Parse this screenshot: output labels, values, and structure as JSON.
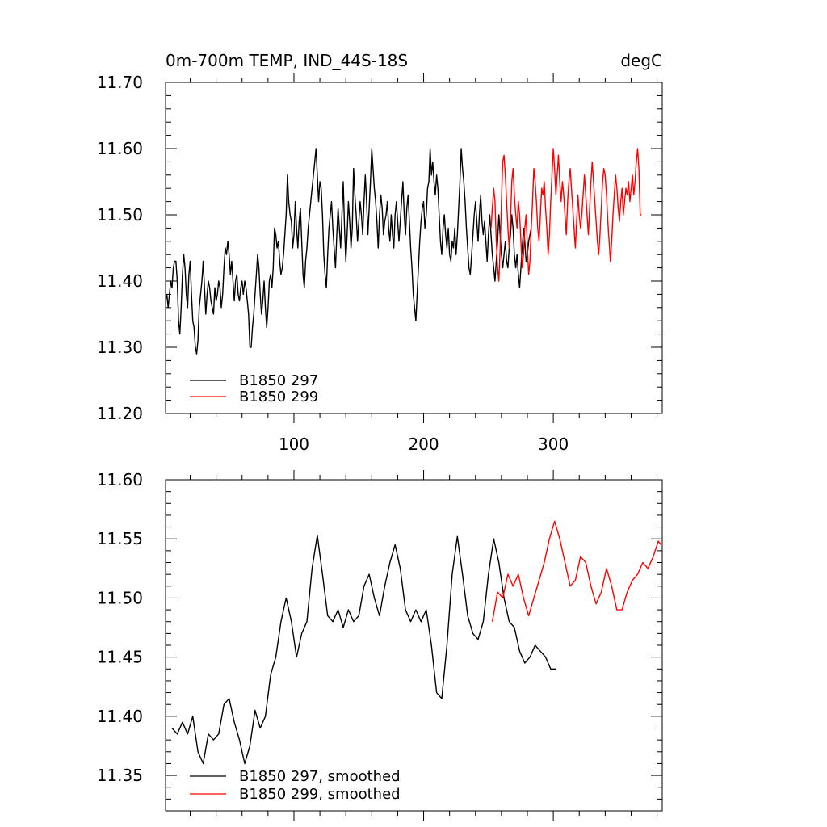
{
  "chart_data": [
    {
      "type": "line",
      "title": "0m-700m TEMP, IND_44S-18S",
      "units": "degC",
      "xlim": [
        1,
        384
      ],
      "ylim": [
        11.2,
        11.7
      ],
      "xticks": [
        100,
        200,
        300
      ],
      "xtick_labels": [
        "100",
        "200",
        "300"
      ],
      "yticks": [
        11.2,
        11.3,
        11.4,
        11.5,
        11.6,
        11.7
      ],
      "ytick_labels": [
        "11.20",
        "11.30",
        "11.40",
        "11.50",
        "11.60",
        "11.70"
      ],
      "legend": {
        "position": "bottom-left",
        "entries": [
          "B1850 297",
          "B1850 299"
        ]
      },
      "series": [
        {
          "name": "B1850 297",
          "color": "#000000",
          "x_start": 1,
          "values": [
            11.37,
            11.38,
            11.36,
            11.38,
            11.4,
            11.39,
            11.42,
            11.43,
            11.43,
            11.4,
            11.34,
            11.32,
            11.36,
            11.41,
            11.44,
            11.42,
            11.38,
            11.36,
            11.41,
            11.43,
            11.38,
            11.34,
            11.33,
            11.3,
            11.29,
            11.31,
            11.36,
            11.38,
            11.4,
            11.43,
            11.39,
            11.35,
            11.38,
            11.4,
            11.39,
            11.37,
            11.36,
            11.35,
            11.39,
            11.37,
            11.38,
            11.4,
            11.39,
            11.36,
            11.38,
            11.42,
            11.45,
            11.44,
            11.46,
            11.44,
            11.41,
            11.43,
            11.4,
            11.37,
            11.4,
            11.41,
            11.38,
            11.37,
            11.39,
            11.4,
            11.38,
            11.4,
            11.39,
            11.37,
            11.35,
            11.3,
            11.3,
            11.33,
            11.35,
            11.38,
            11.41,
            11.44,
            11.42,
            11.38,
            11.35,
            11.37,
            11.4,
            11.36,
            11.33,
            11.36,
            11.4,
            11.41,
            11.39,
            11.42,
            11.48,
            11.47,
            11.45,
            11.46,
            11.43,
            11.41,
            11.42,
            11.44,
            11.47,
            11.5,
            11.56,
            11.52,
            11.5,
            11.49,
            11.45,
            11.47,
            11.52,
            11.48,
            11.45,
            11.49,
            11.51,
            11.46,
            11.41,
            11.39,
            11.43,
            11.45,
            11.48,
            11.5,
            11.52,
            11.54,
            11.56,
            11.58,
            11.6,
            11.56,
            11.52,
            11.55,
            11.54,
            11.5,
            11.44,
            11.41,
            11.39,
            11.44,
            11.48,
            11.5,
            11.52,
            11.48,
            11.45,
            11.42,
            11.47,
            11.51,
            11.48,
            11.45,
            11.5,
            11.55,
            11.48,
            11.43,
            11.47,
            11.52,
            11.49,
            11.45,
            11.48,
            11.57,
            11.53,
            11.5,
            11.46,
            11.49,
            11.52,
            11.5,
            11.47,
            11.52,
            11.56,
            11.52,
            11.47,
            11.51,
            11.55,
            11.6,
            11.57,
            11.54,
            11.52,
            11.49,
            11.45,
            11.5,
            11.53,
            11.51,
            11.47,
            11.49,
            11.5,
            11.52,
            11.48,
            11.46,
            11.5,
            11.47,
            11.45,
            11.5,
            11.52,
            11.49,
            11.46,
            11.49,
            11.52,
            11.55,
            11.5,
            11.47,
            11.51,
            11.53,
            11.49,
            11.45,
            11.42,
            11.38,
            11.36,
            11.34,
            11.38,
            11.42,
            11.46,
            11.49,
            11.51,
            11.52,
            11.48,
            11.5,
            11.54,
            11.55,
            11.6,
            11.56,
            11.58,
            11.55,
            11.53,
            11.56,
            11.54,
            11.5,
            11.46,
            11.44,
            11.48,
            11.5,
            11.47,
            11.45,
            11.48,
            11.44,
            11.43,
            11.46,
            11.45,
            11.48,
            11.44,
            11.47,
            11.51,
            11.55,
            11.6,
            11.57,
            11.55,
            11.52,
            11.48,
            11.45,
            11.42,
            11.41,
            11.44,
            11.47,
            11.5,
            11.52,
            11.49,
            11.46,
            11.5,
            11.53,
            11.49,
            11.47,
            11.49,
            11.46,
            11.43,
            11.47,
            11.5,
            11.47,
            11.44,
            11.42,
            11.4,
            11.43,
            11.46,
            11.5,
            11.47,
            11.44,
            11.42,
            11.44,
            11.46,
            11.43,
            11.42,
            11.45,
            11.47,
            11.5,
            11.48,
            11.44,
            11.42,
            11.44,
            11.41,
            11.39,
            11.42,
            11.45,
            11.48,
            11.46,
            11.43,
            11.44,
            11.46,
            11.47,
            11.48
          ]
        },
        {
          "name": "B1850 299",
          "color": "#ff0000",
          "x_start": 252,
          "values": [
            11.48,
            11.51,
            11.54,
            11.52,
            11.46,
            11.42,
            11.4,
            11.45,
            11.52,
            11.58,
            11.59,
            11.56,
            11.52,
            11.48,
            11.45,
            11.49,
            11.55,
            11.57,
            11.53,
            11.5,
            11.48,
            11.52,
            11.5,
            11.46,
            11.42,
            11.44,
            11.48,
            11.5,
            11.45,
            11.41,
            11.43,
            11.48,
            11.52,
            11.57,
            11.55,
            11.52,
            11.48,
            11.46,
            11.5,
            11.54,
            11.53,
            11.55,
            11.51,
            11.48,
            11.44,
            11.47,
            11.52,
            11.56,
            11.6,
            11.57,
            11.53,
            11.56,
            11.59,
            11.55,
            11.52,
            11.55,
            11.53,
            11.5,
            11.47,
            11.52,
            11.55,
            11.57,
            11.54,
            11.51,
            11.48,
            11.45,
            11.49,
            11.53,
            11.5,
            11.48,
            11.5,
            11.53,
            11.56,
            11.53,
            11.5,
            11.47,
            11.51,
            11.55,
            11.58,
            11.55,
            11.52,
            11.49,
            11.46,
            11.44,
            11.47,
            11.51,
            11.55,
            11.57,
            11.56,
            11.53,
            11.49,
            11.46,
            11.43,
            11.46,
            11.5,
            11.53,
            11.56,
            11.54,
            11.51,
            11.49,
            11.52,
            11.54,
            11.5,
            11.52,
            11.54,
            11.53,
            11.55,
            11.52,
            11.54,
            11.56,
            11.53,
            11.55,
            11.58,
            11.6,
            11.57,
            11.5,
            11.5
          ]
        }
      ]
    },
    {
      "type": "line",
      "xlim": [
        1,
        384
      ],
      "ylim": [
        11.32,
        11.6
      ],
      "xticks": [
        100,
        200,
        300
      ],
      "yticks": [
        11.35,
        11.4,
        11.45,
        11.5,
        11.55,
        11.6
      ],
      "ytick_labels": [
        "11.35",
        "11.40",
        "11.45",
        "11.50",
        "11.55",
        "11.60"
      ],
      "legend": {
        "position": "bottom-left",
        "entries": [
          "B1850 297, smoothed",
          "B1850 299, smoothed"
        ]
      },
      "series": [
        {
          "name": "B1850 297, smoothed",
          "color": "#000000",
          "x": [
            6,
            10,
            14,
            18,
            22,
            26,
            30,
            34,
            38,
            42,
            46,
            50,
            54,
            58,
            62,
            66,
            70,
            74,
            78,
            82,
            86,
            90,
            94,
            98,
            102,
            106,
            110,
            114,
            118,
            122,
            126,
            130,
            134,
            138,
            142,
            146,
            150,
            154,
            158,
            162,
            166,
            170,
            174,
            178,
            182,
            186,
            190,
            194,
            198,
            202,
            206,
            210,
            214,
            218,
            222,
            226,
            230,
            234,
            238,
            242,
            246,
            250,
            254,
            258,
            262,
            266,
            270,
            274,
            278,
            282,
            286,
            290,
            294,
            298,
            302
          ],
          "values": [
            11.39,
            11.385,
            11.395,
            11.385,
            11.4,
            11.37,
            11.36,
            11.385,
            11.38,
            11.385,
            11.41,
            11.415,
            11.395,
            11.38,
            11.36,
            11.375,
            11.405,
            11.39,
            11.4,
            11.435,
            11.45,
            11.48,
            11.5,
            11.48,
            11.45,
            11.47,
            11.48,
            11.525,
            11.553,
            11.52,
            11.485,
            11.48,
            11.49,
            11.475,
            11.49,
            11.48,
            11.485,
            11.51,
            11.52,
            11.5,
            11.485,
            11.51,
            11.53,
            11.545,
            11.525,
            11.49,
            11.48,
            11.49,
            11.48,
            11.49,
            11.46,
            11.42,
            11.415,
            11.46,
            11.52,
            11.552,
            11.52,
            11.485,
            11.47,
            11.465,
            11.48,
            11.52,
            11.55,
            11.53,
            11.5,
            11.48,
            11.475,
            11.455,
            11.445,
            11.45,
            11.46,
            11.455,
            11.45,
            11.44,
            11.44
          ]
        },
        {
          "name": "B1850 299, smoothed",
          "color": "#ff0000",
          "x": [
            253,
            257,
            261,
            265,
            269,
            273,
            277,
            281,
            285,
            289,
            293,
            297,
            301,
            305,
            309,
            313,
            317,
            321,
            325,
            329,
            333,
            337,
            341,
            345,
            349,
            353,
            357,
            361,
            365,
            369,
            373,
            377,
            381,
            383
          ],
          "values": [
            11.48,
            11.505,
            11.5,
            11.52,
            11.51,
            11.52,
            11.5,
            11.485,
            11.5,
            11.515,
            11.53,
            11.55,
            11.565,
            11.55,
            11.53,
            11.51,
            11.515,
            11.535,
            11.53,
            11.51,
            11.495,
            11.505,
            11.525,
            11.51,
            11.49,
            11.49,
            11.505,
            11.515,
            11.52,
            11.53,
            11.525,
            11.535,
            11.548,
            11.545
          ]
        }
      ]
    }
  ]
}
